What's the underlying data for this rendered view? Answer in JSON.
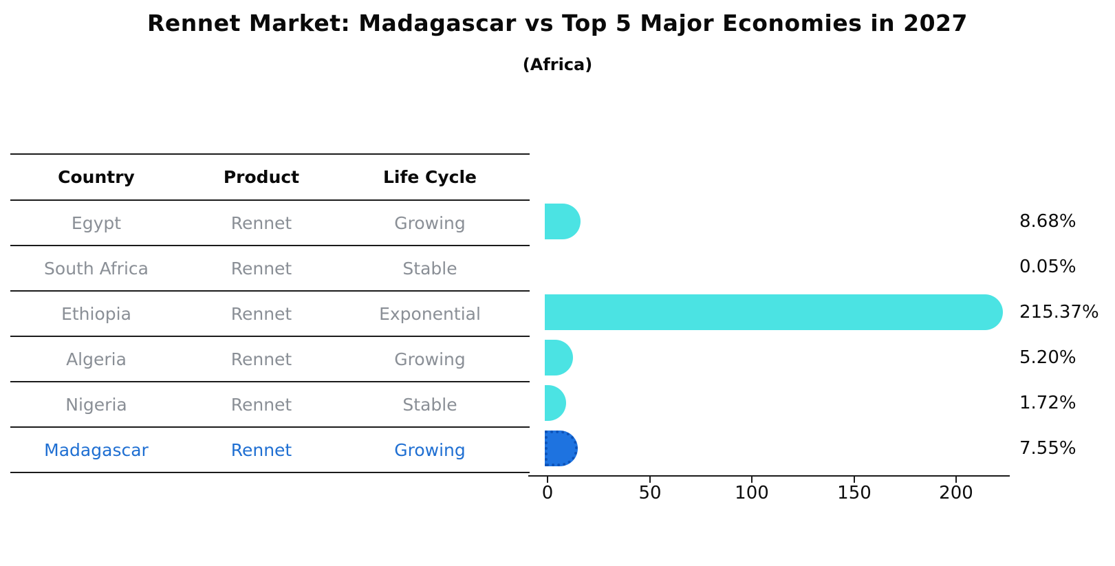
{
  "header": {
    "title": "Rennet Market: Madagascar vs Top 5 Major Economies in 2027",
    "subtitle": "(Africa)"
  },
  "table": {
    "columns": [
      "Country",
      "Product",
      "Life Cycle"
    ],
    "rows": [
      {
        "country": "Egypt",
        "product": "Rennet",
        "life_cycle": "Growing",
        "value_label": "8.68%"
      },
      {
        "country": "South Africa",
        "product": "Rennet",
        "life_cycle": "Stable",
        "value_label": "0.05%"
      },
      {
        "country": "Ethiopia",
        "product": "Rennet",
        "life_cycle": "Exponential",
        "value_label": "215.37%"
      },
      {
        "country": "Algeria",
        "product": "Rennet",
        "life_cycle": "Growing",
        "value_label": "5.20%"
      },
      {
        "country": "Nigeria",
        "product": "Rennet",
        "life_cycle": "Stable",
        "value_label": "1.72%"
      },
      {
        "country": "Madagascar",
        "product": "Rennet",
        "life_cycle": "Growing",
        "value_label": "7.55%"
      }
    ]
  },
  "chart_data": {
    "type": "bar",
    "orientation": "horizontal",
    "title": "Rennet Market: Madagascar vs Top 5 Major Economies in 2027",
    "subtitle": "(Africa)",
    "categories": [
      "Egypt",
      "South Africa",
      "Ethiopia",
      "Algeria",
      "Nigeria",
      "Madagascar"
    ],
    "values": [
      8.68,
      0.05,
      215.37,
      5.2,
      1.72,
      7.55
    ],
    "value_labels": [
      "8.68%",
      "0.05%",
      "215.37%",
      "5.20%",
      "1.72%",
      "7.55%"
    ],
    "xlabel": "",
    "ylabel": "",
    "x_ticks": [
      0,
      50,
      100,
      150,
      200
    ],
    "x_tick_labels": [
      "0",
      "50",
      "100",
      "150",
      "200"
    ],
    "xlim": [
      -9,
      227
    ],
    "grid": false,
    "legend": "none",
    "bar_color": "#4BE3E3",
    "highlight_index": 5,
    "highlight_color": "#1E73E0",
    "highlight_edge_color": "#0d53b8",
    "highlight_text_color": "#1F6FD2",
    "text_color_muted": "#8A8F96"
  }
}
